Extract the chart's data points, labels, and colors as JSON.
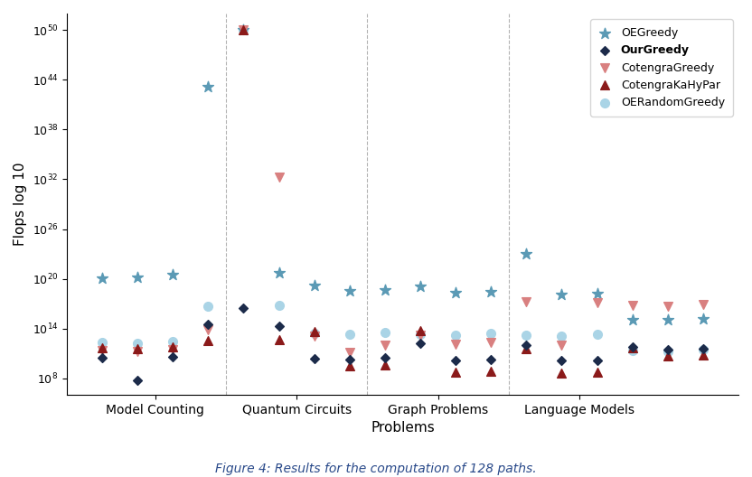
{
  "title": "Figure 4: Results for the computation of 128 paths.",
  "xlabel": "Problems",
  "ylabel": "Flops log 10",
  "ylim_exp": [
    6,
    52
  ],
  "ytick_exps": [
    8,
    14,
    20,
    26,
    32,
    38,
    44,
    50
  ],
  "section_labels": [
    "Model Counting",
    "Quantum Circuits",
    "Graph Problems",
    "Language Models"
  ],
  "section_centers": [
    2.5,
    6.5,
    10.5,
    14.5
  ],
  "section_dividers": [
    4.5,
    8.5,
    12.5
  ],
  "series": [
    {
      "name": "OEGreedy",
      "color": "#5b9ab5",
      "marker": "*",
      "markersize": 9,
      "zorder": 3,
      "bold": false,
      "log_values": [
        [
          1,
          20.1
        ],
        [
          2,
          20.2
        ],
        [
          3,
          20.5
        ],
        [
          4,
          43.2
        ],
        [
          5,
          50.0
        ],
        [
          6,
          20.7
        ],
        [
          7,
          19.2
        ],
        [
          8,
          18.5
        ],
        [
          9,
          18.7
        ],
        [
          10,
          19.1
        ],
        [
          11,
          18.3
        ],
        [
          12,
          18.4
        ],
        [
          13,
          23.0
        ],
        [
          14,
          18.1
        ],
        [
          15,
          18.2
        ],
        [
          16,
          15.0
        ],
        [
          17,
          15.1
        ],
        [
          18,
          15.2
        ]
      ]
    },
    {
      "name": "OurGreedy",
      "color": "#1c2b4a",
      "marker": "D",
      "markersize": 5,
      "zorder": 5,
      "bold": true,
      "log_values": [
        [
          1,
          10.5
        ],
        [
          2,
          7.8
        ],
        [
          3,
          10.6
        ],
        [
          4,
          14.5
        ],
        [
          5,
          16.5
        ],
        [
          6,
          14.3
        ],
        [
          7,
          10.4
        ],
        [
          8,
          10.3
        ],
        [
          9,
          10.5
        ],
        [
          10,
          12.2
        ],
        [
          11,
          10.2
        ],
        [
          12,
          10.3
        ],
        [
          13,
          12.0
        ],
        [
          14,
          10.1
        ],
        [
          15,
          10.2
        ],
        [
          16,
          11.8
        ],
        [
          17,
          11.5
        ],
        [
          18,
          11.6
        ]
      ]
    },
    {
      "name": "CotengraGreedy",
      "color": "#d98080",
      "marker": "v",
      "markersize": 7,
      "zorder": 4,
      "bold": false,
      "log_values": [
        [
          1,
          11.3
        ],
        [
          2,
          11.2
        ],
        [
          3,
          11.4
        ],
        [
          4,
          13.9
        ],
        [
          5,
          50.0
        ],
        [
          6,
          32.3
        ],
        [
          7,
          13.1
        ],
        [
          8,
          11.1
        ],
        [
          9,
          12.0
        ],
        [
          10,
          13.2
        ],
        [
          11,
          12.1
        ],
        [
          12,
          12.3
        ],
        [
          13,
          17.2
        ],
        [
          14,
          12.0
        ],
        [
          15,
          17.1
        ],
        [
          16,
          16.8
        ],
        [
          17,
          16.7
        ],
        [
          18,
          16.9
        ]
      ]
    },
    {
      "name": "CotengraKaHyPar",
      "color": "#8b1a1a",
      "marker": "^",
      "markersize": 7,
      "zorder": 4,
      "bold": false,
      "log_values": [
        [
          1,
          11.7
        ],
        [
          2,
          11.6
        ],
        [
          3,
          11.8
        ],
        [
          4,
          12.5
        ],
        [
          5,
          50.0
        ],
        [
          6,
          12.6
        ],
        [
          7,
          13.6
        ],
        [
          8,
          9.5
        ],
        [
          9,
          9.6
        ],
        [
          10,
          13.7
        ],
        [
          11,
          8.7
        ],
        [
          12,
          8.8
        ],
        [
          13,
          11.6
        ],
        [
          14,
          8.6
        ],
        [
          15,
          8.7
        ],
        [
          16,
          11.7
        ],
        [
          17,
          10.7
        ],
        [
          18,
          10.8
        ]
      ]
    },
    {
      "name": "OERandomGreedy",
      "color": "#aad4e6",
      "marker": "o",
      "markersize": 7,
      "zorder": 2,
      "bold": false,
      "log_values": [
        [
          1,
          12.3
        ],
        [
          2,
          12.2
        ],
        [
          3,
          12.4
        ],
        [
          4,
          16.7
        ],
        [
          5,
          50.0
        ],
        [
          6,
          16.8
        ],
        [
          7,
          13.4
        ],
        [
          8,
          13.3
        ],
        [
          9,
          13.5
        ],
        [
          10,
          13.3
        ],
        [
          11,
          13.2
        ],
        [
          12,
          13.4
        ],
        [
          13,
          13.2
        ],
        [
          14,
          13.1
        ],
        [
          15,
          13.3
        ],
        [
          16,
          11.3
        ],
        [
          17,
          11.2
        ],
        [
          18,
          11.4
        ]
      ]
    }
  ]
}
